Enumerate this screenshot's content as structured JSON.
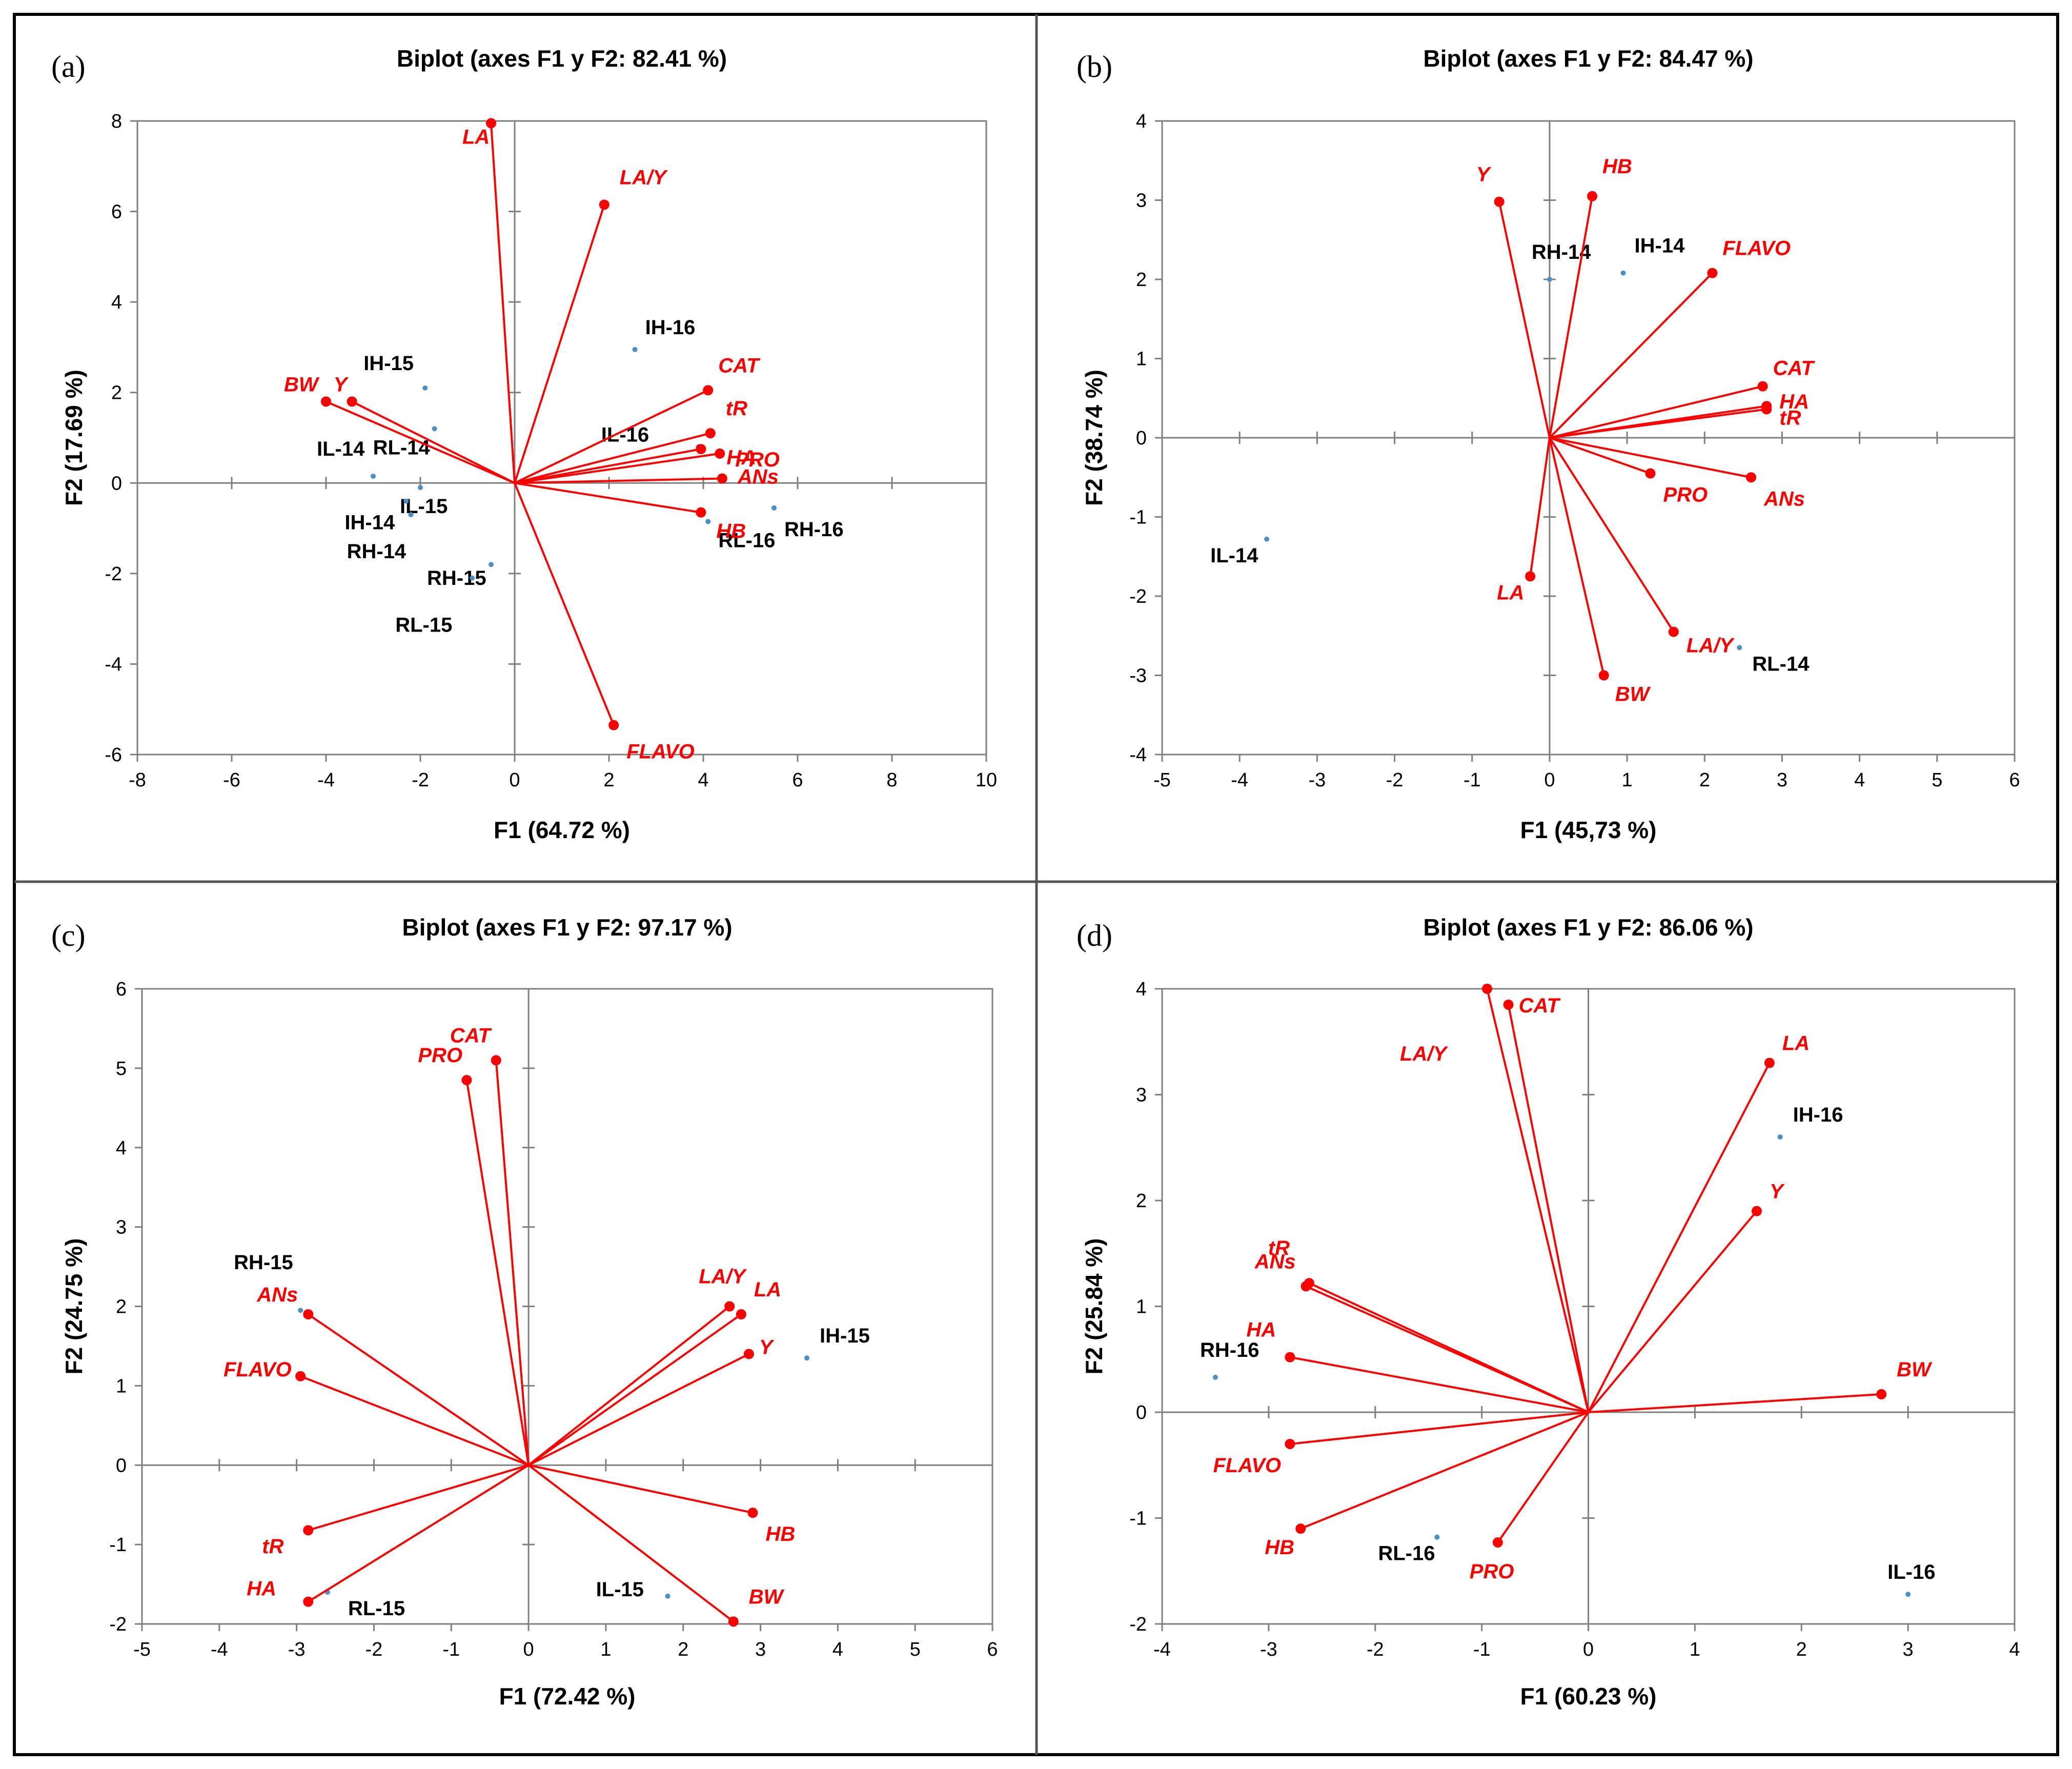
{
  "colors": {
    "variables": "#ff0000",
    "observations": "#4a90c8",
    "axes": "#7f7f7f",
    "text": "#000000"
  },
  "chart_data": [
    {
      "panel": "(a)",
      "type": "scatter",
      "title": "Biplot (axes F1 y F2: 82.41  %)",
      "xlabel": "F1 (64.72  %)",
      "ylabel": "F2 (17.69  %)",
      "xlim": [
        -8,
        10
      ],
      "ylim": [
        -6,
        8
      ],
      "xticks": [
        -8,
        -6,
        -4,
        -2,
        0,
        2,
        4,
        6,
        8,
        10
      ],
      "yticks": [
        -6,
        -4,
        -2,
        0,
        2,
        4,
        6,
        8
      ],
      "xtick_labels": [
        "-8",
        "-6",
        "-4",
        "-2",
        "0",
        "2",
        "4",
        "6",
        "8",
        "10"
      ],
      "ytick_labels": [
        "-6",
        "-4",
        "-2",
        "0",
        "2",
        "4",
        "6",
        "8"
      ],
      "variables": [
        {
          "name": "LA",
          "x": -0.5,
          "y": 7.95
        },
        {
          "name": "LA/Y",
          "x": 1.9,
          "y": 6.15
        },
        {
          "name": "BW",
          "x": -4.0,
          "y": 1.8
        },
        {
          "name": "Y",
          "x": -3.45,
          "y": 1.8
        },
        {
          "name": "CAT",
          "x": 4.1,
          "y": 2.05
        },
        {
          "name": "tR",
          "x": 4.15,
          "y": 1.1
        },
        {
          "name": "HA",
          "x": 3.95,
          "y": 0.75
        },
        {
          "name": "PRO",
          "x": 4.35,
          "y": 0.65
        },
        {
          "name": "ANs",
          "x": 4.4,
          "y": 0.1
        },
        {
          "name": "HB",
          "x": 3.95,
          "y": -0.65
        },
        {
          "name": "FLAVO",
          "x": 2.1,
          "y": -5.35
        }
      ],
      "observations": [
        {
          "name": "IH-16",
          "x": 2.55,
          "y": 2.95
        },
        {
          "name": "IH-15",
          "x": -1.9,
          "y": 2.1
        },
        {
          "name": "RL-14",
          "x": -1.7,
          "y": 1.2
        },
        {
          "name": "IL-14",
          "x": -3.0,
          "y": 0.15
        },
        {
          "name": "IL-15",
          "x": -2.0,
          "y": -0.1
        },
        {
          "name": "IH-14",
          "x": -2.3,
          "y": -0.4
        },
        {
          "name": "RH-14",
          "x": -2.2,
          "y": -0.7
        },
        {
          "name": "IL-16",
          "x": 3.9,
          "y": 0.8
        },
        {
          "name": "RH-16",
          "x": 5.5,
          "y": -0.55
        },
        {
          "name": "RL-16",
          "x": 4.1,
          "y": -0.85
        },
        {
          "name": "RH-15",
          "x": -0.5,
          "y": -1.8
        },
        {
          "name": "RL-15",
          "x": -0.9,
          "y": -2.1
        }
      ]
    },
    {
      "panel": "(b)",
      "type": "scatter",
      "title": "Biplot (axes F1 y F2: 84.47  %)",
      "xlabel": "F1 (45,73  %)",
      "ylabel": "F2 (38.74  %)",
      "xlim": [
        -5,
        6
      ],
      "ylim": [
        -4,
        4
      ],
      "xticks": [
        -5,
        -4,
        -3,
        -2,
        -1,
        0,
        1,
        2,
        3,
        4,
        5,
        6
      ],
      "yticks": [
        -4,
        -3,
        -2,
        -1,
        0,
        1,
        2,
        3,
        4
      ],
      "xtick_labels": [
        "-5",
        "-4",
        "-3",
        "-2",
        "-1",
        "0",
        "1",
        "2",
        "3",
        "4",
        "5",
        "6"
      ],
      "ytick_labels": [
        "-4",
        "-3",
        "-2",
        "-1",
        "0",
        "1",
        "2",
        "3",
        "4"
      ],
      "variables": [
        {
          "name": "Y",
          "x": -0.65,
          "y": 2.98
        },
        {
          "name": "HB",
          "x": 0.55,
          "y": 3.05
        },
        {
          "name": "FLAVO",
          "x": 2.1,
          "y": 2.08
        },
        {
          "name": "CAT",
          "x": 2.75,
          "y": 0.65
        },
        {
          "name": "HA",
          "x": 2.8,
          "y": 0.4
        },
        {
          "name": "tR",
          "x": 2.8,
          "y": 0.36
        },
        {
          "name": "PRO",
          "x": 1.3,
          "y": -0.45
        },
        {
          "name": "ANs",
          "x": 2.6,
          "y": -0.5
        },
        {
          "name": "LA",
          "x": -0.25,
          "y": -1.75
        },
        {
          "name": "LA/Y",
          "x": 1.6,
          "y": -2.45
        },
        {
          "name": "BW",
          "x": 0.7,
          "y": -3.0
        }
      ],
      "observations": [
        {
          "name": "RH-14",
          "x": 0.0,
          "y": 2.0
        },
        {
          "name": "IH-14",
          "x": 0.95,
          "y": 2.08
        },
        {
          "name": "IL-14",
          "x": -3.65,
          "y": -1.28
        },
        {
          "name": "RL-14",
          "x": 2.45,
          "y": -2.65
        }
      ]
    },
    {
      "panel": "(c)",
      "type": "scatter",
      "title": "Biplot (axes F1 y F2: 97.17  %)",
      "xlabel": "F1 (72.42  %)",
      "ylabel": "F2 (24.75  %)",
      "xlim": [
        -5,
        6
      ],
      "ylim": [
        -2,
        6
      ],
      "xticks": [
        -5,
        -4,
        -3,
        -2,
        -1,
        0,
        1,
        2,
        3,
        4,
        5,
        6
      ],
      "yticks": [
        -2,
        -1,
        0,
        1,
        2,
        3,
        4,
        5,
        6
      ],
      "xtick_labels": [
        "-5",
        "-4",
        "-3",
        "-2",
        "-1",
        "0",
        "1",
        "2",
        "3",
        "4",
        "5",
        "6"
      ],
      "ytick_labels": [
        "-2",
        "-1",
        "0",
        "1",
        "2",
        "3",
        "4",
        "5",
        "6"
      ],
      "variables": [
        {
          "name": "PRO",
          "x": -0.8,
          "y": 4.85
        },
        {
          "name": "CAT",
          "x": -0.42,
          "y": 5.1
        },
        {
          "name": "ANs",
          "x": -2.85,
          "y": 1.9
        },
        {
          "name": "FLAVO",
          "x": -2.95,
          "y": 1.12
        },
        {
          "name": "LA/Y",
          "x": 2.6,
          "y": 2.0
        },
        {
          "name": "LA",
          "x": 2.75,
          "y": 1.9
        },
        {
          "name": "Y",
          "x": 2.85,
          "y": 1.4
        },
        {
          "name": "HB",
          "x": 2.9,
          "y": -0.6
        },
        {
          "name": "tR",
          "x": -2.85,
          "y": -0.82
        },
        {
          "name": "HA",
          "x": -2.85,
          "y": -1.72
        },
        {
          "name": "BW",
          "x": 2.65,
          "y": -1.97
        }
      ],
      "observations": [
        {
          "name": "RH-15",
          "x": -2.95,
          "y": 1.95
        },
        {
          "name": "IH-15",
          "x": 3.6,
          "y": 1.35
        },
        {
          "name": "RL-15",
          "x": -2.6,
          "y": -1.6
        },
        {
          "name": "IL-15",
          "x": 1.8,
          "y": -1.65
        }
      ]
    },
    {
      "panel": "(d)",
      "type": "scatter",
      "title": "Biplot (axes F1 y F2: 86.06  %)",
      "xlabel": "F1 (60.23  %)",
      "ylabel": "F2 (25.84  %)",
      "xlim": [
        -4,
        4
      ],
      "ylim": [
        -2,
        4
      ],
      "xticks": [
        -4,
        -3,
        -2,
        -1,
        0,
        1,
        2,
        3,
        4
      ],
      "yticks": [
        -2,
        -1,
        0,
        1,
        2,
        3,
        4
      ],
      "xtick_labels": [
        "-4",
        "-3",
        "-2",
        "-1",
        "0",
        "1",
        "2",
        "3",
        "4"
      ],
      "ytick_labels": [
        "-2",
        "-1",
        "0",
        "1",
        "2",
        "3",
        "4"
      ],
      "variables": [
        {
          "name": "LA/Y",
          "x": -0.95,
          "y": 4.0
        },
        {
          "name": "CAT",
          "x": -0.75,
          "y": 3.85
        },
        {
          "name": "LA",
          "x": 1.7,
          "y": 3.3
        },
        {
          "name": "Y",
          "x": 1.58,
          "y": 1.9
        },
        {
          "name": "tR",
          "x": -2.62,
          "y": 1.22
        },
        {
          "name": "ANs",
          "x": -2.65,
          "y": 1.19
        },
        {
          "name": "HA",
          "x": -2.8,
          "y": 0.52
        },
        {
          "name": "BW",
          "x": 2.75,
          "y": 0.17
        },
        {
          "name": "FLAVO",
          "x": -2.8,
          "y": -0.3
        },
        {
          "name": "HB",
          "x": -2.7,
          "y": -1.1
        },
        {
          "name": "PRO",
          "x": -0.85,
          "y": -1.23
        }
      ],
      "observations": [
        {
          "name": "IH-16",
          "x": 1.8,
          "y": 2.6
        },
        {
          "name": "RH-16",
          "x": -3.5,
          "y": 0.33
        },
        {
          "name": "RL-16",
          "x": -1.42,
          "y": -1.18
        },
        {
          "name": "IL-16",
          "x": 3.0,
          "y": -1.72
        }
      ]
    }
  ]
}
